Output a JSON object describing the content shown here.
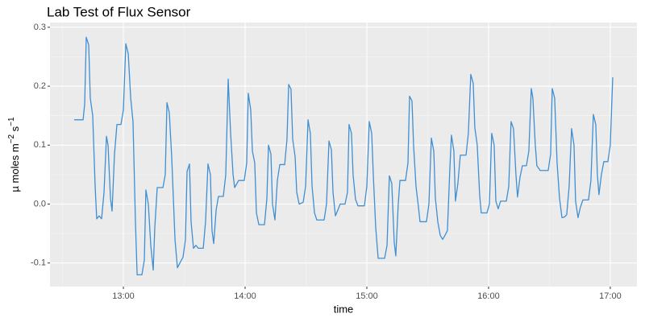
{
  "chart_data": {
    "type": "line",
    "title": "Lab Test of Flux Sensor",
    "xlabel": "time",
    "ylabel_parts": [
      "µ moles m",
      "−2",
      " s",
      "−1"
    ],
    "color": "#3f8fd2",
    "grid": true,
    "xlim": [
      12.397,
      17.219
    ],
    "xticks": [
      {
        "value": 13,
        "label": "13:00"
      },
      {
        "value": 14,
        "label": "14:00"
      },
      {
        "value": 15,
        "label": "15:00"
      },
      {
        "value": 16,
        "label": "16:00"
      },
      {
        "value": 17,
        "label": "17:00"
      }
    ],
    "ylim": [
      -0.14,
      0.308
    ],
    "yticks": [
      -0.1,
      {
        "value": 0,
        "label": "0.0"
      },
      0.1,
      0.2,
      0.3
    ],
    "x": [
      12.596,
      12.669,
      12.682,
      12.695,
      12.715,
      12.728,
      12.748,
      12.768,
      12.781,
      12.801,
      12.821,
      12.841,
      12.861,
      12.874,
      12.894,
      12.907,
      12.927,
      12.947,
      12.98,
      13.0,
      13.02,
      13.04,
      13.06,
      13.079,
      13.099,
      13.113,
      13.152,
      13.172,
      13.185,
      13.205,
      13.225,
      13.245,
      13.258,
      13.278,
      13.325,
      13.344,
      13.358,
      13.377,
      13.397,
      13.424,
      13.444,
      13.464,
      13.49,
      13.51,
      13.523,
      13.543,
      13.556,
      13.576,
      13.596,
      13.616,
      13.656,
      13.675,
      13.695,
      13.715,
      13.728,
      13.742,
      13.762,
      13.781,
      13.821,
      13.841,
      13.861,
      13.881,
      13.901,
      13.914,
      13.947,
      13.993,
      14.013,
      14.026,
      14.046,
      14.06,
      14.079,
      14.093,
      14.113,
      14.159,
      14.179,
      14.192,
      14.212,
      14.225,
      14.245,
      14.265,
      14.285,
      14.325,
      14.344,
      14.358,
      14.377,
      14.391,
      14.411,
      14.424,
      14.444,
      14.477,
      14.497,
      14.517,
      14.536,
      14.55,
      14.57,
      14.589,
      14.649,
      14.669,
      14.689,
      14.709,
      14.722,
      14.742,
      14.762,
      14.781,
      14.821,
      14.841,
      14.854,
      14.874,
      14.887,
      14.907,
      14.927,
      14.98,
      15.0,
      15.02,
      15.04,
      15.053,
      15.073,
      15.093,
      15.146,
      15.166,
      15.185,
      15.205,
      15.225,
      15.238,
      15.258,
      15.272,
      15.318,
      15.338,
      15.351,
      15.371,
      15.384,
      15.404,
      15.424,
      15.437,
      15.49,
      15.51,
      15.53,
      15.55,
      15.563,
      15.583,
      15.603,
      15.623,
      15.642,
      15.662,
      15.682,
      15.695,
      15.715,
      15.728,
      15.748,
      15.768,
      15.815,
      15.834,
      15.854,
      15.874,
      15.887,
      15.907,
      15.927,
      15.94,
      15.987,
      16.007,
      16.026,
      16.046,
      16.06,
      16.079,
      16.099,
      16.146,
      16.166,
      16.185,
      16.205,
      16.225,
      16.238,
      16.258,
      16.278,
      16.311,
      16.331,
      16.351,
      16.364,
      16.384,
      16.397,
      16.424,
      16.49,
      16.51,
      16.523,
      16.543,
      16.563,
      16.583,
      16.603,
      16.623,
      16.642,
      16.662,
      16.682,
      16.702,
      16.715,
      16.735,
      16.755,
      16.775,
      16.821,
      16.841,
      16.861,
      16.881,
      16.894,
      16.907,
      16.927,
      16.947,
      16.98,
      17.0,
      17.02
    ],
    "values": [
      0.143,
      0.143,
      0.17,
      0.283,
      0.27,
      0.18,
      0.15,
      0.03,
      -0.025,
      -0.02,
      -0.025,
      0.02,
      0.115,
      0.1,
      0.01,
      -0.012,
      0.085,
      0.135,
      0.135,
      0.16,
      0.272,
      0.255,
      0.18,
      0.14,
      -0.03,
      -0.12,
      -0.12,
      -0.095,
      0.024,
      0.0,
      -0.07,
      -0.112,
      -0.04,
      0.028,
      0.028,
      0.05,
      0.172,
      0.155,
      0.08,
      -0.06,
      -0.108,
      -0.1,
      -0.09,
      -0.06,
      0.055,
      0.068,
      -0.03,
      -0.075,
      -0.07,
      -0.075,
      -0.075,
      -0.03,
      0.068,
      0.05,
      -0.045,
      -0.067,
      -0.01,
      0.013,
      0.013,
      0.05,
      0.212,
      0.12,
      0.05,
      0.028,
      0.04,
      0.04,
      0.07,
      0.188,
      0.16,
      0.09,
      0.07,
      -0.015,
      -0.035,
      -0.035,
      0.01,
      0.1,
      0.085,
      0.0,
      -0.027,
      0.04,
      0.067,
      0.067,
      0.11,
      0.203,
      0.195,
      0.11,
      0.08,
      0.02,
      0.0,
      0.003,
      0.03,
      0.143,
      0.12,
      0.03,
      -0.015,
      -0.027,
      -0.027,
      0.0,
      0.107,
      0.092,
      0.02,
      -0.02,
      -0.01,
      0.0,
      0.0,
      0.02,
      0.135,
      0.12,
      0.05,
      0.008,
      -0.003,
      -0.003,
      0.03,
      0.14,
      0.12,
      0.05,
      -0.04,
      -0.092,
      -0.092,
      -0.07,
      0.048,
      0.035,
      -0.065,
      -0.088,
      0.0,
      0.04,
      0.04,
      0.07,
      0.183,
      0.175,
      0.1,
      0.03,
      -0.005,
      -0.03,
      -0.03,
      0.0,
      0.112,
      0.09,
      0.01,
      -0.03,
      -0.053,
      -0.06,
      -0.053,
      -0.045,
      0.06,
      0.117,
      0.09,
      0.005,
      0.035,
      0.083,
      0.083,
      0.12,
      0.22,
      0.205,
      0.13,
      0.1,
      0.015,
      -0.015,
      -0.015,
      0.0,
      0.12,
      0.1,
      0.005,
      -0.008,
      0.005,
      0.005,
      0.03,
      0.14,
      0.128,
      0.05,
      0.012,
      0.045,
      0.065,
      0.065,
      0.09,
      0.196,
      0.18,
      0.1,
      0.065,
      0.057,
      0.057,
      0.085,
      0.196,
      0.18,
      0.07,
      0.01,
      -0.023,
      -0.022,
      -0.018,
      0.03,
      0.128,
      0.1,
      0.005,
      -0.023,
      -0.005,
      0.007,
      0.007,
      0.04,
      0.152,
      0.135,
      0.05,
      0.016,
      0.05,
      0.072,
      0.072,
      0.1,
      0.215
    ]
  }
}
